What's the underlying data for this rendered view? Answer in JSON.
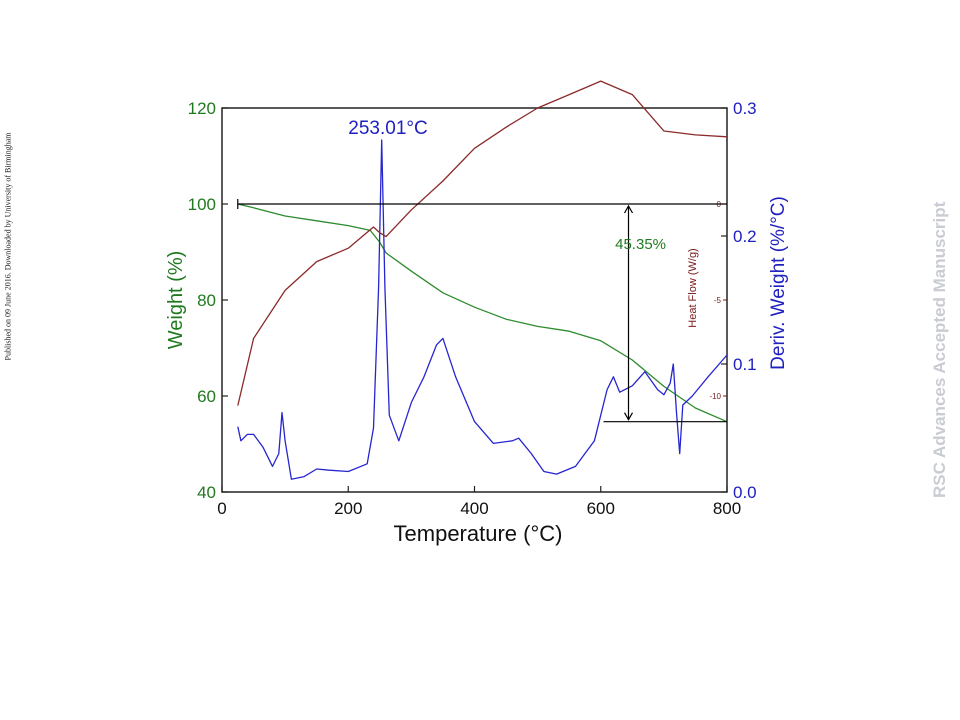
{
  "side_note": "Published on 09 June 2016. Downloaded by University of Birmingham",
  "watermark": "RSC Advances Accepted Manuscript",
  "chart_data": {
    "type": "line",
    "title": "",
    "xlabel": "Temperature (°C)",
    "ylabel_left": "Weight (%)",
    "ylabel_right": "Deriv. Weight (%/°C)",
    "inner_axis_label": "Heat Flow (W/g)",
    "xlim": [
      0,
      800
    ],
    "ylim_left": [
      40,
      120
    ],
    "ylim_right": [
      0.0,
      0.3
    ],
    "ylim_heatflow": [
      -12.5,
      0.3
    ],
    "x_ticks": [
      "0",
      "200",
      "400",
      "600",
      "800"
    ],
    "y_left_ticks": [
      "40",
      "60",
      "80",
      "100",
      "120"
    ],
    "y_right_ticks": [
      "0.0",
      "0.1",
      "0.2",
      "0.3"
    ],
    "heatflow_ticks": [
      "0",
      "-5",
      "-10"
    ],
    "grid": false,
    "colors": {
      "weight": "#2e8b2e",
      "deriv": "#2626d0",
      "heatflow": "#8b2a2a",
      "annotation": "#000000"
    },
    "annotations": {
      "peak_label": "253.01°C",
      "peak_x": 253.01,
      "mass_loss_label": "45.35%",
      "mass_loss_top": 100,
      "mass_loss_bottom": 54.65,
      "mass_loss_x": 720
    },
    "series": [
      {
        "axis": "left",
        "color": "#2e8b2e",
        "points": [
          [
            25,
            100
          ],
          [
            50,
            99.2
          ],
          [
            100,
            97.5
          ],
          [
            150,
            96.5
          ],
          [
            200,
            95.5
          ],
          [
            235,
            94.5
          ],
          [
            250,
            92
          ],
          [
            260,
            89.8
          ],
          [
            300,
            86
          ],
          [
            350,
            81.5
          ],
          [
            400,
            78.5
          ],
          [
            450,
            76
          ],
          [
            500,
            74.5
          ],
          [
            550,
            73.5
          ],
          [
            600,
            71.5
          ],
          [
            650,
            67.5
          ],
          [
            700,
            62
          ],
          [
            750,
            57.5
          ],
          [
            800,
            54.65
          ]
        ]
      },
      {
        "axis": "right",
        "color": "#2626d0",
        "points": [
          [
            25,
            0.051
          ],
          [
            30,
            0.04
          ],
          [
            40,
            0.045
          ],
          [
            50,
            0.045
          ],
          [
            65,
            0.035
          ],
          [
            80,
            0.02
          ],
          [
            90,
            0.03
          ],
          [
            95,
            0.062
          ],
          [
            100,
            0.04
          ],
          [
            110,
            0.01
          ],
          [
            130,
            0.012
          ],
          [
            150,
            0.018
          ],
          [
            170,
            0.017
          ],
          [
            200,
            0.016
          ],
          [
            230,
            0.022
          ],
          [
            240,
            0.05
          ],
          [
            248,
            0.16
          ],
          [
            253,
            0.275
          ],
          [
            258,
            0.16
          ],
          [
            265,
            0.06
          ],
          [
            280,
            0.04
          ],
          [
            300,
            0.07
          ],
          [
            320,
            0.09
          ],
          [
            340,
            0.115
          ],
          [
            350,
            0.12
          ],
          [
            370,
            0.09
          ],
          [
            400,
            0.055
          ],
          [
            430,
            0.038
          ],
          [
            460,
            0.04
          ],
          [
            470,
            0.042
          ],
          [
            490,
            0.03
          ],
          [
            510,
            0.016
          ],
          [
            530,
            0.014
          ],
          [
            560,
            0.02
          ],
          [
            590,
            0.04
          ],
          [
            610,
            0.08
          ],
          [
            620,
            0.09
          ],
          [
            630,
            0.078
          ],
          [
            650,
            0.083
          ],
          [
            670,
            0.094
          ],
          [
            690,
            0.08
          ],
          [
            700,
            0.076
          ],
          [
            710,
            0.085
          ],
          [
            715,
            0.1
          ],
          [
            720,
            0.062
          ],
          [
            725,
            0.03
          ],
          [
            730,
            0.068
          ],
          [
            745,
            0.075
          ],
          [
            770,
            0.09
          ],
          [
            800,
            0.107
          ]
        ]
      },
      {
        "axis": "heatflow",
        "color": "#8b2a2a",
        "points": [
          [
            25,
            -10.5
          ],
          [
            50,
            -7
          ],
          [
            100,
            -4.5
          ],
          [
            150,
            -3
          ],
          [
            200,
            -2.3
          ],
          [
            240,
            -1.2
          ],
          [
            250,
            -1.5
          ],
          [
            260,
            -1.7
          ],
          [
            300,
            -0.3
          ],
          [
            350,
            1.2
          ],
          [
            400,
            2.9
          ],
          [
            450,
            4
          ],
          [
            500,
            5
          ],
          [
            550,
            5.7
          ],
          [
            600,
            6.4
          ],
          [
            650,
            5.7
          ],
          [
            700,
            3.8
          ],
          [
            750,
            3.6
          ],
          [
            800,
            3.5
          ]
        ]
      }
    ]
  }
}
